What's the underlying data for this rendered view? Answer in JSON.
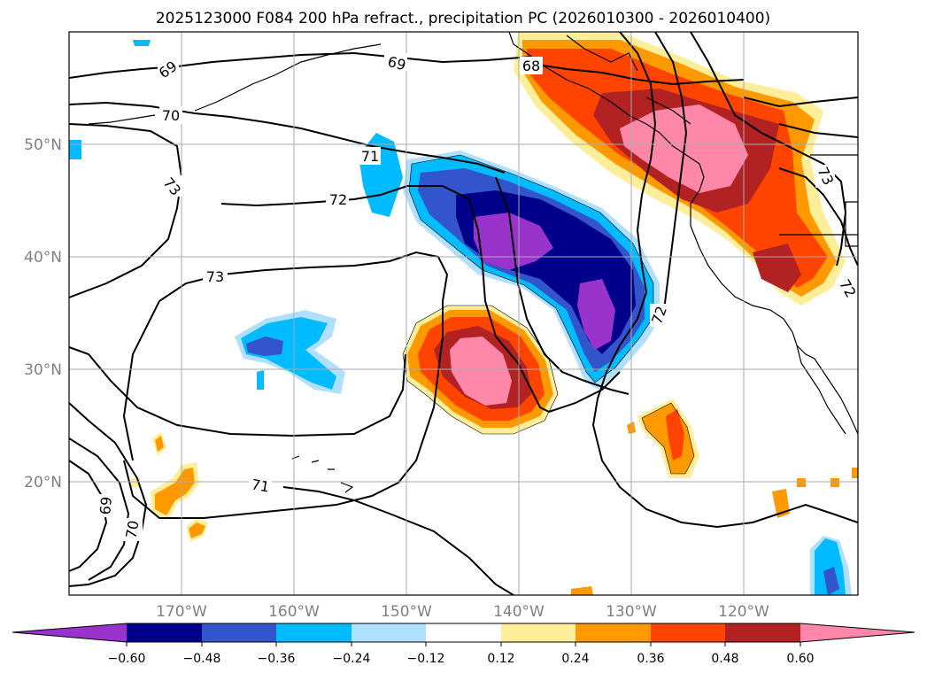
{
  "title": "2025123000 F084 200 hPa refract., precipitation PC (2026010300 - 2026010400)",
  "lat_labels": [
    "50°N",
    "40°N",
    "30°N",
    "20°N"
  ],
  "lon_labels": [
    "170°W",
    "160°W",
    "150°W",
    "140°W",
    "130°W",
    "120°W"
  ],
  "contour_labels": [
    "68",
    "69",
    "69",
    "69",
    "70",
    "70",
    "71",
    "71",
    "72",
    "72",
    "72",
    "73",
    "73",
    "73"
  ],
  "colorbar": {
    "tick_labels": [
      "−0.60",
      "−0.48",
      "−0.36",
      "−0.24",
      "−0.12",
      "0.12",
      "0.24",
      "0.36",
      "0.48",
      "0.60"
    ],
    "colors": [
      "#9933cc",
      "#00008b",
      "#3355cc",
      "#00bbff",
      "#b0e0ff",
      "#ffffff",
      "#ffee99",
      "#ff9900",
      "#ff4400",
      "#b22222",
      "#ff88aa"
    ]
  },
  "chart_data": {
    "type": "heatmap",
    "title": "2025123000 F084 200 hPa refract., precipitation PC (2026010300 - 2026010400)",
    "field": "precipitation PC (shaded), 200 hPa refractivity (contours)",
    "levels": [
      -0.6,
      -0.48,
      -0.36,
      -0.24,
      -0.12,
      0.12,
      0.24,
      0.36,
      0.48,
      0.6
    ],
    "contour_values": [
      68,
      69,
      70,
      71,
      72,
      73
    ],
    "xlim": [
      "180°W",
      "110°W"
    ],
    "ylim": [
      "10°N",
      "60°N"
    ]
  }
}
